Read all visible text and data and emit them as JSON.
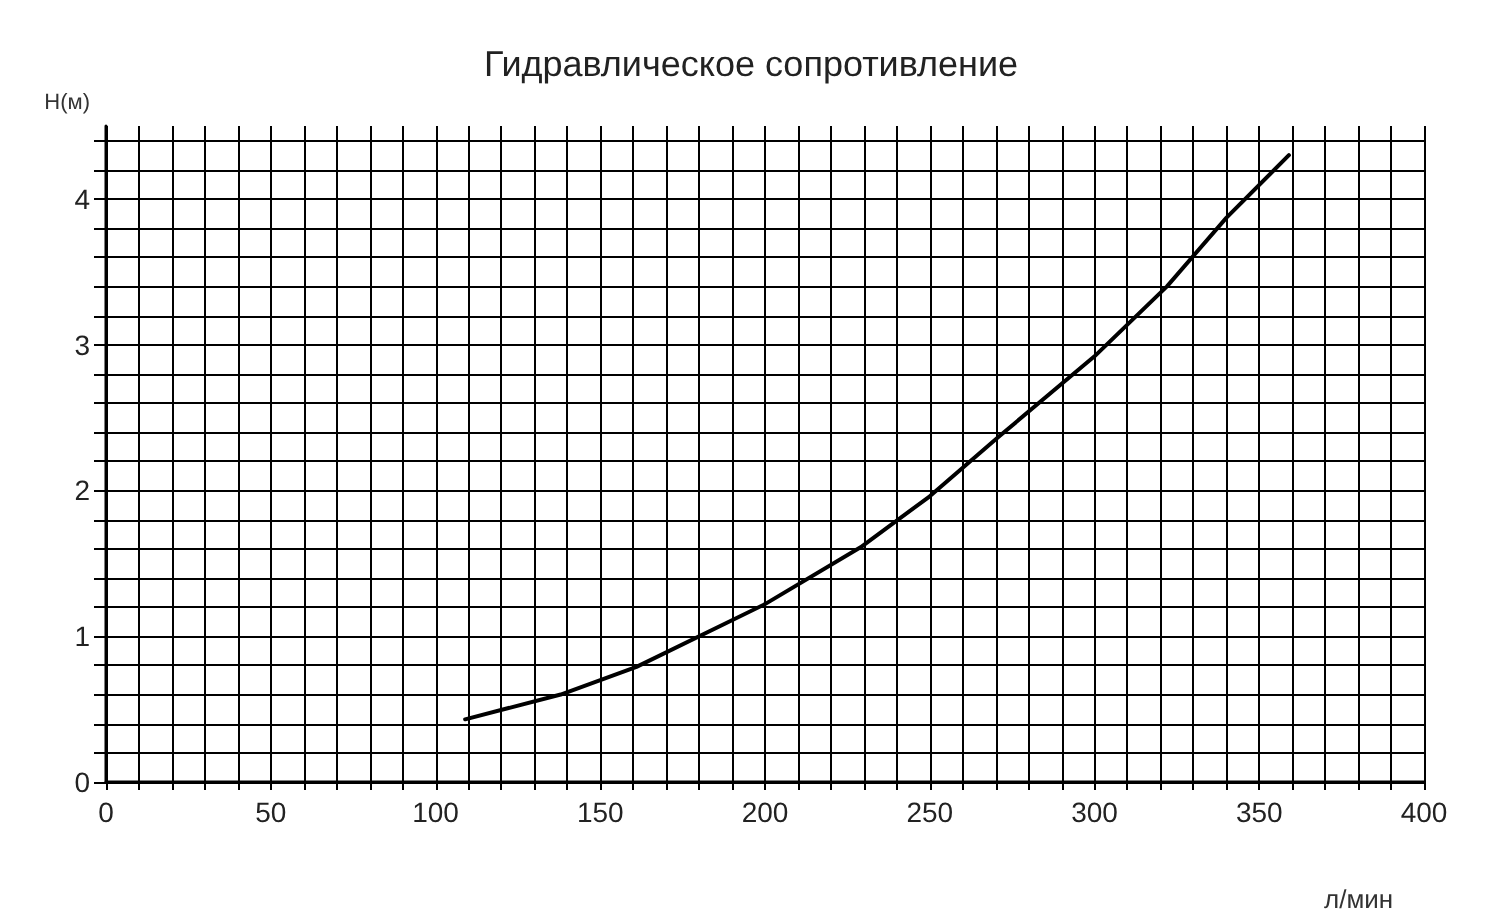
{
  "chart_data": {
    "type": "line",
    "title": "Гидравлическое сопротивление",
    "xlabel": "л/мин",
    "ylabel": "Н(м)",
    "x": [
      109,
      138,
      161,
      200,
      229,
      250,
      271,
      300,
      322,
      340,
      359
    ],
    "series": [
      {
        "color": "#000000",
        "values": [
          0.43,
          0.6,
          0.79,
          1.22,
          1.61,
          1.96,
          2.37,
          2.92,
          3.4,
          3.87,
          4.3
        ]
      }
    ],
    "xlim": [
      0,
      400
    ],
    "xticks": [
      0,
      {
        "value": 10,
        "label": null
      },
      {
        "value": 20,
        "label": null
      },
      {
        "value": 30,
        "label": null
      },
      {
        "value": 40,
        "label": null
      },
      50,
      {
        "value": 60,
        "label": null
      },
      {
        "value": 70,
        "label": null
      },
      {
        "value": 80,
        "label": null
      },
      {
        "value": 90,
        "label": null
      },
      100,
      {
        "value": 110,
        "label": null
      },
      {
        "value": 120,
        "label": null
      },
      {
        "value": 130,
        "label": null
      },
      {
        "value": 140,
        "label": null
      },
      150,
      {
        "value": 160,
        "label": null
      },
      {
        "value": 170,
        "label": null
      },
      {
        "value": 180,
        "label": null
      },
      {
        "value": 190,
        "label": null
      },
      200,
      {
        "value": 210,
        "label": null
      },
      {
        "value": 220,
        "label": null
      },
      {
        "value": 230,
        "label": null
      },
      {
        "value": 240,
        "label": null
      },
      250,
      {
        "value": 260,
        "label": null
      },
      {
        "value": 270,
        "label": null
      },
      {
        "value": 280,
        "label": null
      },
      {
        "value": 290,
        "label": null
      },
      300,
      {
        "value": 310,
        "label": null
      },
      {
        "value": 320,
        "label": null
      },
      {
        "value": 330,
        "label": null
      },
      {
        "value": 340,
        "label": null
      },
      350,
      {
        "value": 360,
        "label": null
      },
      {
        "value": 370,
        "label": null
      },
      {
        "value": 380,
        "label": null
      },
      {
        "value": 390,
        "label": null
      },
      400
    ],
    "ylim": [
      0,
      4.5
    ],
    "yticks": [
      0,
      {
        "value": 0.2,
        "label": null
      },
      {
        "value": 0.4,
        "label": null
      },
      {
        "value": 0.6,
        "label": null
      },
      {
        "value": 0.8,
        "label": null
      },
      1,
      {
        "value": 1.2,
        "label": null
      },
      {
        "value": 1.4,
        "label": null
      },
      {
        "value": 1.6,
        "label": null
      },
      {
        "value": 1.8,
        "label": null
      },
      2,
      {
        "value": 2.2,
        "label": null
      },
      {
        "value": 2.4,
        "label": null
      },
      {
        "value": 2.6,
        "label": null
      },
      {
        "value": 2.8,
        "label": null
      },
      3,
      {
        "value": 3.2,
        "label": null
      },
      {
        "value": 3.4,
        "label": null
      },
      {
        "value": 3.6,
        "label": null
      },
      {
        "value": 3.8,
        "label": null
      },
      4,
      {
        "value": 4.2,
        "label": null
      },
      {
        "value": 4.4,
        "label": null
      }
    ],
    "grid": true,
    "marker": "none",
    "line_style": "solid"
  }
}
